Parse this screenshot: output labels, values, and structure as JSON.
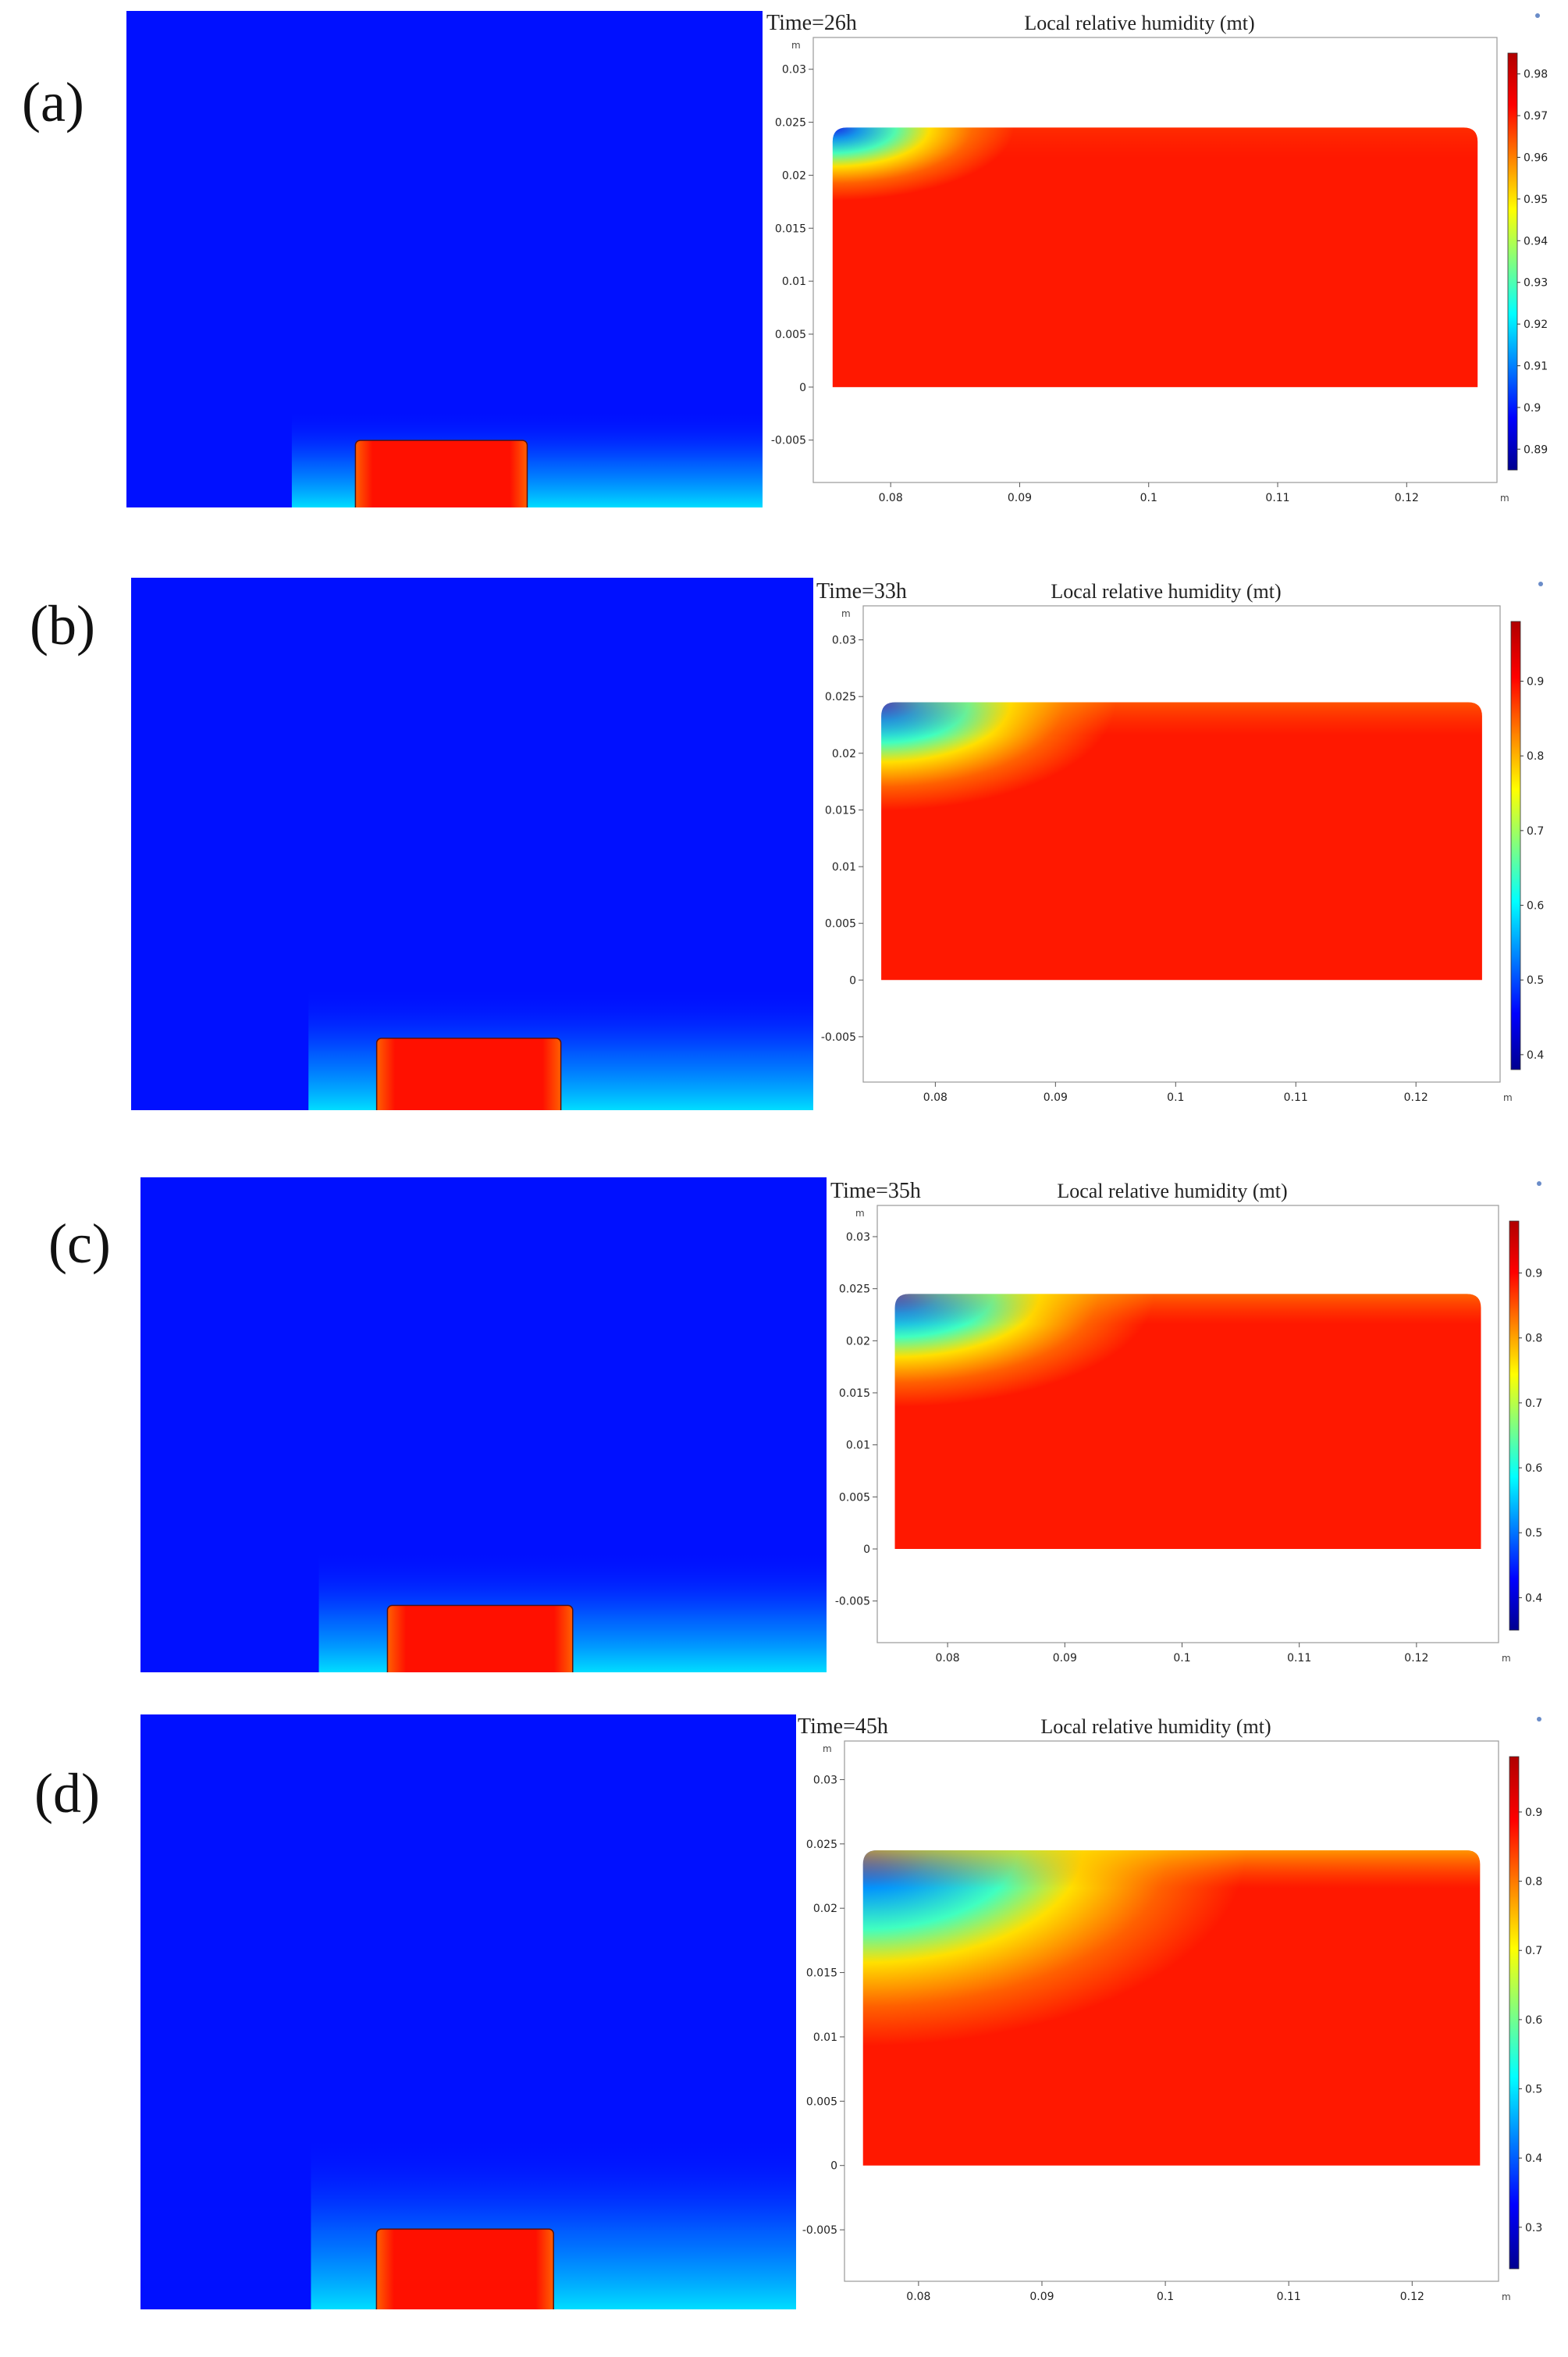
{
  "colors": {
    "background_field": "#0010ff",
    "colormap": [
      "#00008f",
      "#0000ff",
      "#0080ff",
      "#00ffff",
      "#80ff80",
      "#ffff00",
      "#ff8000",
      "#ff0000",
      "#b00000"
    ]
  },
  "axis_unit": "m",
  "plot_title": "Local relative humidity (mt)",
  "panels": [
    {
      "label": "(a)",
      "time": "Time=26h",
      "x_ticks": [
        "0.08",
        "0.09",
        "0.1",
        "0.11",
        "0.12"
      ],
      "y_ticks": [
        "0.03",
        "0.025",
        "0.02",
        "0.015",
        "0.01",
        "0.005",
        "0",
        "-0.005"
      ],
      "colorbar_ticks": [
        "0.98",
        "0.97",
        "0.96",
        "0.95",
        "0.94",
        "0.93",
        "0.92",
        "0.91",
        "0.9",
        "0.89"
      ],
      "colorbar_range": [
        0.885,
        0.985
      ],
      "dry_extent": 0.12
    },
    {
      "label": "(b)",
      "time": "Time=33h",
      "x_ticks": [
        "0.08",
        "0.09",
        "0.1",
        "0.11",
        "0.12"
      ],
      "y_ticks": [
        "0.03",
        "0.025",
        "0.02",
        "0.015",
        "0.01",
        "0.005",
        "0",
        "-0.005"
      ],
      "colorbar_ticks": [
        "0.9",
        "0.8",
        "0.7",
        "0.6",
        "0.5",
        "0.4"
      ],
      "colorbar_range": [
        0.38,
        0.98
      ],
      "dry_extent": 0.35
    },
    {
      "label": "(c)",
      "time": "Time=35h",
      "x_ticks": [
        "0.08",
        "0.09",
        "0.1",
        "0.11",
        "0.12"
      ],
      "y_ticks": [
        "0.03",
        "0.025",
        "0.02",
        "0.015",
        "0.01",
        "0.005",
        "0",
        "-0.005"
      ],
      "colorbar_ticks": [
        "0.9",
        "0.8",
        "0.7",
        "0.6",
        "0.5",
        "0.4"
      ],
      "colorbar_range": [
        0.35,
        0.98
      ],
      "dry_extent": 0.45
    },
    {
      "label": "(d)",
      "time": "Time=45h",
      "x_ticks": [
        "0.08",
        "0.09",
        "0.1",
        "0.11",
        "0.12"
      ],
      "y_ticks": [
        "0.03",
        "0.025",
        "0.02",
        "0.015",
        "0.01",
        "0.005",
        "0",
        "-0.005"
      ],
      "colorbar_ticks": [
        "0.9",
        "0.8",
        "0.7",
        "0.6",
        "0.5",
        "0.4",
        "0.3"
      ],
      "colorbar_range": [
        0.24,
        0.98
      ],
      "dry_extent": 0.75
    }
  ]
}
